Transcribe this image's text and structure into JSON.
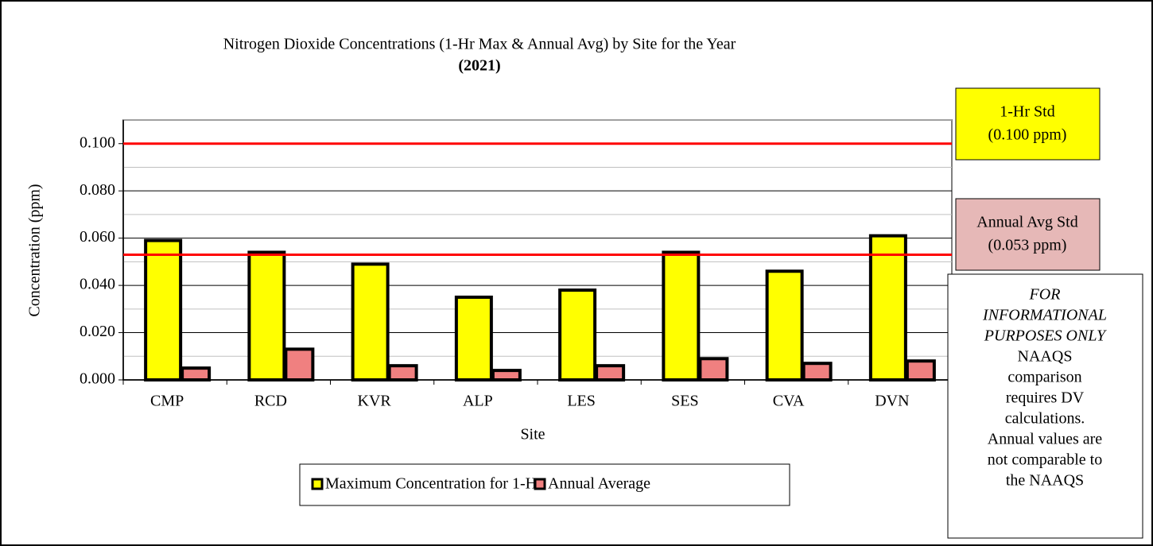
{
  "chart_data": {
    "type": "bar",
    "title": "Nitrogen Dioxide Concentrations (1-Hr Max & Annual Avg) by Site for the Year",
    "subtitle": "(2021)",
    "x_label": "Site",
    "y_label": "Concentration (ppm)",
    "categories": [
      "CMP",
      "RCD",
      "KVR",
      "ALP",
      "LES",
      "SES",
      "CVA",
      "DVN"
    ],
    "series": [
      {
        "name": "Maximum Concentration for 1-Hr",
        "color": "#ffff00",
        "values": [
          0.059,
          0.054,
          0.049,
          0.035,
          0.038,
          0.054,
          0.046,
          0.061
        ]
      },
      {
        "name": "Annual Average",
        "color": "#f08080",
        "values": [
          0.005,
          0.013,
          0.006,
          0.004,
          0.006,
          0.009,
          0.007,
          0.008
        ]
      }
    ],
    "ylim": [
      0,
      0.11
    ],
    "yticks": [
      {
        "value": 0,
        "label": "0.000"
      },
      {
        "value": 0.02,
        "label": "0.020"
      },
      {
        "value": 0.04,
        "label": "0.040"
      },
      {
        "value": 0.06,
        "label": "0.060"
      },
      {
        "value": 0.08,
        "label": "0.080"
      },
      {
        "value": 0.1,
        "label": "0.100"
      }
    ],
    "minor_yticks": [
      0.01,
      0.03,
      0.05,
      0.07,
      0.09,
      0.11
    ],
    "grid": true,
    "legend": "bottom",
    "reference_lines": [
      {
        "value": 0.1,
        "label": "1-Hr Std",
        "value_label": "(0.100 ppm)",
        "color": "#ff0000",
        "box_color": "#ffff00"
      },
      {
        "value": 0.053,
        "label": "Annual Avg Std",
        "value_label": "(0.053 ppm)",
        "color": "#ff0000",
        "box_color": "#e6b8b7"
      }
    ],
    "note": {
      "emphasis": [
        "FOR",
        "INFORMATIONAL",
        "PURPOSES ONLY"
      ],
      "lines": [
        "NAAQS",
        "comparison",
        "requires DV",
        "calculations.",
        "Annual values are",
        "not comparable to",
        "the NAAQS"
      ]
    }
  }
}
